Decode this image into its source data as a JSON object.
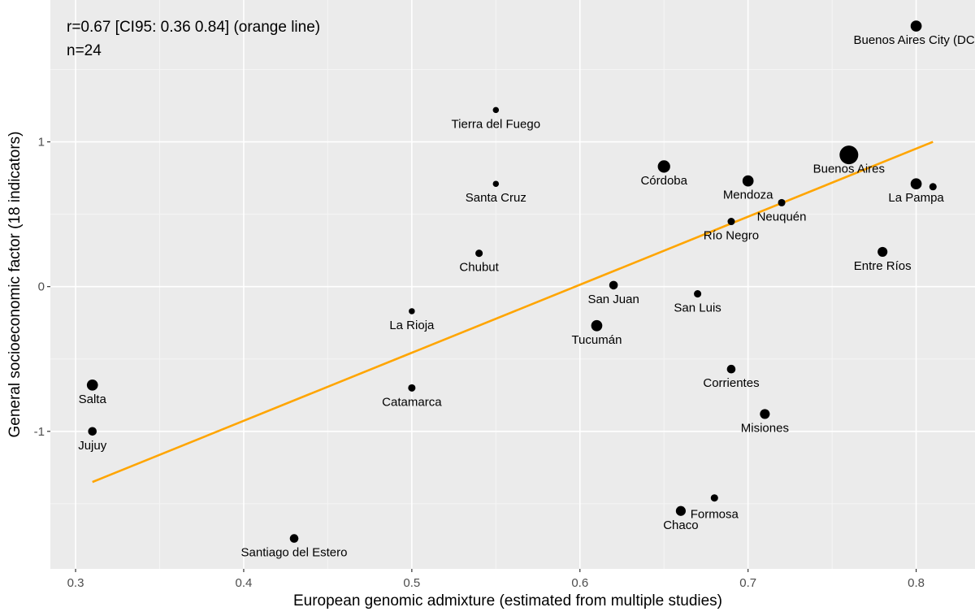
{
  "chart_data": {
    "type": "scatter",
    "title": "",
    "xlabel": "European genomic admixture (estimated from multiple studies)",
    "ylabel": "General socioeconomic factor (18 indicators)",
    "xlim": [
      0.285,
      0.835
    ],
    "ylim": [
      -1.95,
      1.98
    ],
    "x_ticks": [
      0.3,
      0.4,
      0.5,
      0.6,
      0.7,
      0.8
    ],
    "x_tick_labels": [
      "0.3",
      "0.4",
      "0.5",
      "0.6",
      "0.7",
      "0.8"
    ],
    "y_ticks": [
      -1,
      0,
      1
    ],
    "y_tick_labels": [
      "-1",
      "0",
      "1"
    ],
    "annotations": [
      "r=0.67 [CI95: 0.36 0.84] (orange line)",
      "n=24"
    ],
    "fit_line": {
      "color": "#FFA500",
      "x": [
        0.31,
        0.81
      ],
      "y": [
        -1.35,
        1.0
      ]
    },
    "point_color": "#000000",
    "points": [
      {
        "label": "Buenos Aires City (DC)",
        "x": 0.8,
        "y": 1.8,
        "size": 3,
        "label_pos": "below"
      },
      {
        "label": "Tierra del Fuego",
        "x": 0.55,
        "y": 1.22,
        "size": 1,
        "label_pos": "below"
      },
      {
        "label": "Buenos Aires",
        "x": 0.76,
        "y": 0.91,
        "size": 6,
        "label_pos": "below"
      },
      {
        "label": "Córdoba",
        "x": 0.65,
        "y": 0.83,
        "size": 3.5,
        "label_pos": "below"
      },
      {
        "label": "Santa Cruz",
        "x": 0.55,
        "y": 0.71,
        "size": 1,
        "label_pos": "below"
      },
      {
        "label": "Mendoza",
        "x": 0.7,
        "y": 0.73,
        "size": 3,
        "label_pos": "below"
      },
      {
        "label": "La Pampa",
        "x": 0.8,
        "y": 0.71,
        "size": 3,
        "label_pos": "below"
      },
      {
        "label": "",
        "x": 0.81,
        "y": 0.69,
        "size": 1.5,
        "label_pos": "below"
      },
      {
        "label": "Neuquén",
        "x": 0.72,
        "y": 0.58,
        "size": 1.5,
        "label_pos": "below"
      },
      {
        "label": "Río Negro",
        "x": 0.69,
        "y": 0.45,
        "size": 1.5,
        "label_pos": "below"
      },
      {
        "label": "Chubut",
        "x": 0.54,
        "y": 0.23,
        "size": 1.5,
        "label_pos": "below"
      },
      {
        "label": "Entre Ríos",
        "x": 0.78,
        "y": 0.24,
        "size": 2.5,
        "label_pos": "below"
      },
      {
        "label": "San Juan",
        "x": 0.62,
        "y": 0.01,
        "size": 2,
        "label_pos": "below"
      },
      {
        "label": "San Luis",
        "x": 0.67,
        "y": -0.05,
        "size": 1.5,
        "label_pos": "below"
      },
      {
        "label": "La Rioja",
        "x": 0.5,
        "y": -0.17,
        "size": 1,
        "label_pos": "below"
      },
      {
        "label": "Tucumán",
        "x": 0.61,
        "y": -0.27,
        "size": 3,
        "label_pos": "below"
      },
      {
        "label": "Corrientes",
        "x": 0.69,
        "y": -0.57,
        "size": 2,
        "label_pos": "below"
      },
      {
        "label": "Salta",
        "x": 0.31,
        "y": -0.68,
        "size": 3,
        "label_pos": "below"
      },
      {
        "label": "Catamarca",
        "x": 0.5,
        "y": -0.7,
        "size": 1.5,
        "label_pos": "below"
      },
      {
        "label": "Misiones",
        "x": 0.71,
        "y": -0.88,
        "size": 2.5,
        "label_pos": "below"
      },
      {
        "label": "Jujuy",
        "x": 0.31,
        "y": -1.0,
        "size": 2,
        "label_pos": "below"
      },
      {
        "label": "",
        "x": 0.68,
        "y": -1.46,
        "size": 1.5,
        "label_pos": "below"
      },
      {
        "label": "Formosa",
        "x": 0.68,
        "y": -1.46,
        "size": 0,
        "label_pos": "formosa"
      },
      {
        "label": "Chaco",
        "x": 0.66,
        "y": -1.55,
        "size": 2.5,
        "label_pos": "below"
      },
      {
        "label": "Santiago del Estero",
        "x": 0.43,
        "y": -1.74,
        "size": 2,
        "label_pos": "below"
      }
    ]
  }
}
